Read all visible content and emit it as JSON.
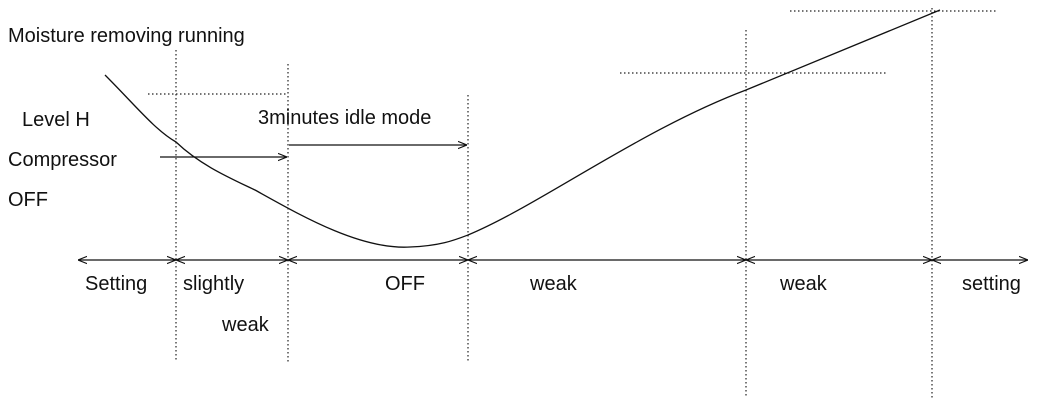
{
  "title": "Moisture removing running",
  "labels": {
    "level": "Level H",
    "compressor": "Compressor",
    "off": "OFF",
    "idle": "3minutes idle mode"
  },
  "segments": [
    [
      "Setting"
    ],
    [
      "slightly",
      "weak"
    ],
    [
      "OFF"
    ],
    [
      "weak"
    ],
    [
      "weak"
    ],
    [
      "setting"
    ]
  ]
}
